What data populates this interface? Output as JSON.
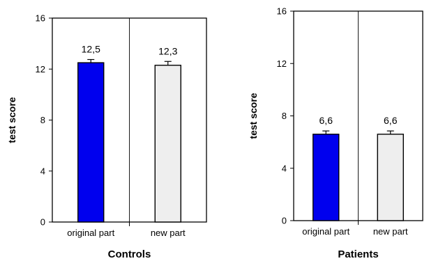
{
  "chart_data": [
    {
      "type": "bar",
      "title": "Controls",
      "ylabel": "test score",
      "xlabel": "",
      "categories": [
        "original part",
        "new part"
      ],
      "values": [
        12.5,
        12.3
      ],
      "errors": [
        0.25,
        0.3
      ],
      "data_labels": [
        "12,5",
        "12,3"
      ],
      "colors": [
        "#0000ee",
        "#eeeeee"
      ],
      "ylim": [
        0,
        16
      ],
      "yticks": [
        0,
        4,
        8,
        12,
        16
      ],
      "grid": false,
      "category_divider": true
    },
    {
      "type": "bar",
      "title": "Patients",
      "ylabel": "test score",
      "xlabel": "",
      "categories": [
        "original part",
        "new part"
      ],
      "values": [
        6.6,
        6.6
      ],
      "errors": [
        0.25,
        0.25
      ],
      "data_labels": [
        "6,6",
        "6,6"
      ],
      "colors": [
        "#0000ee",
        "#eeeeee"
      ],
      "ylim": [
        0,
        16
      ],
      "yticks": [
        0,
        4,
        8,
        12,
        16
      ],
      "grid": false,
      "category_divider": true
    }
  ]
}
